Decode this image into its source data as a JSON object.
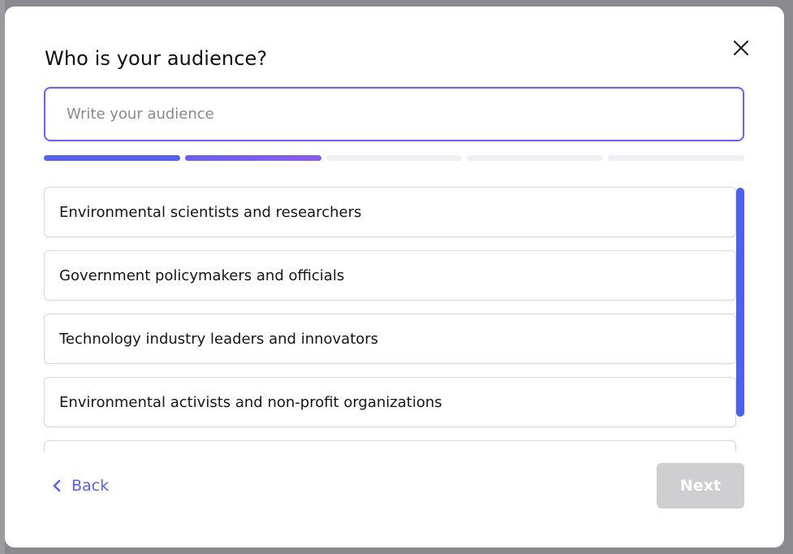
{
  "modal": {
    "title": "Who is your audience?",
    "input": {
      "placeholder": "Write your audience",
      "value": ""
    },
    "progress": {
      "total_steps": 5,
      "completed_steps": 2
    },
    "options": [
      "Environmental scientists and researchers",
      "Government policymakers and officials",
      "Technology industry leaders and innovators",
      "Environmental activists and non-profit organizations",
      ""
    ],
    "footer": {
      "back_label": "Back",
      "next_label": "Next"
    },
    "colors": {
      "accent": "#5560f0",
      "accent_purple": "#8d5cf0",
      "disabled_button": "#cfcfd1"
    },
    "icons": {
      "close": "close-icon",
      "back": "chevron-left-icon"
    }
  }
}
